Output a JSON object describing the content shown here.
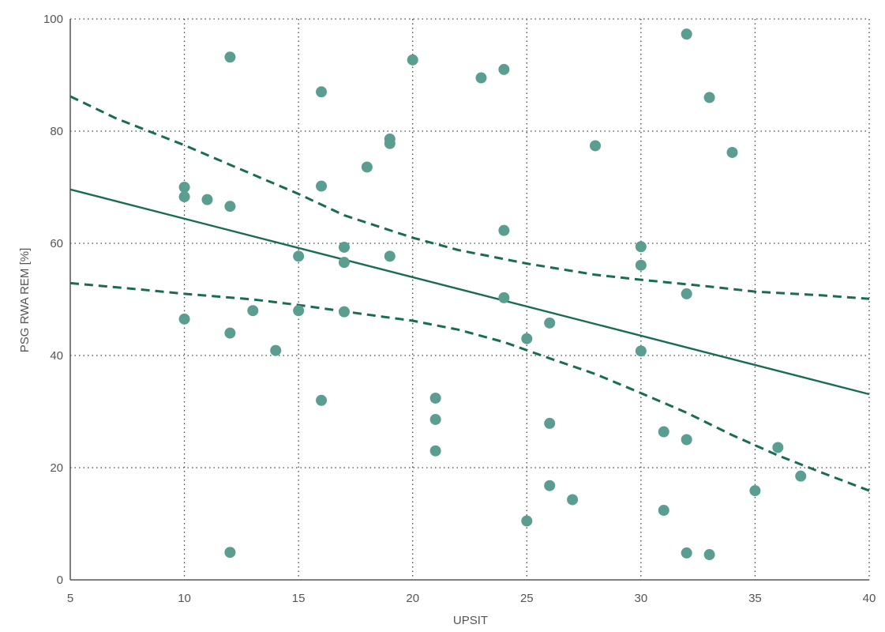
{
  "chart_data": {
    "type": "scatter",
    "title": "",
    "xlabel": "UPSIT",
    "ylabel": "PSG RWA REM [%]",
    "xlim": [
      5,
      40
    ],
    "ylim": [
      0,
      100
    ],
    "x_ticks": [
      5,
      10,
      15,
      20,
      25,
      30,
      35,
      40
    ],
    "y_ticks": [
      0,
      20,
      40,
      60,
      80,
      100
    ],
    "grid": "dotted",
    "legend": "none",
    "colors": {
      "points": "#5b9e91",
      "lines": "#1a6b55",
      "axes": "#555555",
      "grid": "#444444"
    },
    "points": [
      {
        "x": 10,
        "y": 70.0
      },
      {
        "x": 10,
        "y": 68.3
      },
      {
        "x": 10,
        "y": 46.5
      },
      {
        "x": 11,
        "y": 67.8
      },
      {
        "x": 12,
        "y": 93.2
      },
      {
        "x": 12,
        "y": 66.6
      },
      {
        "x": 12,
        "y": 44.0
      },
      {
        "x": 12,
        "y": 4.9
      },
      {
        "x": 13,
        "y": 48.0
      },
      {
        "x": 14,
        "y": 40.9
      },
      {
        "x": 15,
        "y": 57.7
      },
      {
        "x": 15,
        "y": 48.0
      },
      {
        "x": 16,
        "y": 87.0
      },
      {
        "x": 16,
        "y": 70.2
      },
      {
        "x": 16,
        "y": 32.0
      },
      {
        "x": 17,
        "y": 59.3
      },
      {
        "x": 17,
        "y": 56.6
      },
      {
        "x": 17,
        "y": 47.8
      },
      {
        "x": 18,
        "y": 73.6
      },
      {
        "x": 19,
        "y": 78.6
      },
      {
        "x": 19,
        "y": 77.8
      },
      {
        "x": 19,
        "y": 57.7
      },
      {
        "x": 20,
        "y": 92.7
      },
      {
        "x": 21,
        "y": 32.4
      },
      {
        "x": 21,
        "y": 28.6
      },
      {
        "x": 21,
        "y": 23.0
      },
      {
        "x": 23,
        "y": 89.5
      },
      {
        "x": 24,
        "y": 91.0
      },
      {
        "x": 24,
        "y": 62.3
      },
      {
        "x": 24,
        "y": 50.3
      },
      {
        "x": 25,
        "y": 43.0
      },
      {
        "x": 25,
        "y": 10.5
      },
      {
        "x": 26,
        "y": 45.8
      },
      {
        "x": 26,
        "y": 27.9
      },
      {
        "x": 26,
        "y": 16.8
      },
      {
        "x": 27,
        "y": 14.3
      },
      {
        "x": 28,
        "y": 77.4
      },
      {
        "x": 30,
        "y": 59.4
      },
      {
        "x": 30,
        "y": 56.1
      },
      {
        "x": 30,
        "y": 40.8
      },
      {
        "x": 31,
        "y": 26.4
      },
      {
        "x": 31,
        "y": 12.4
      },
      {
        "x": 32,
        "y": 97.3
      },
      {
        "x": 32,
        "y": 51.0
      },
      {
        "x": 32,
        "y": 25.0
      },
      {
        "x": 32,
        "y": 4.8
      },
      {
        "x": 33,
        "y": 86.0
      },
      {
        "x": 33,
        "y": 4.5
      },
      {
        "x": 34,
        "y": 76.2
      },
      {
        "x": 35,
        "y": 15.9
      },
      {
        "x": 36,
        "y": 23.6
      },
      {
        "x": 37,
        "y": 18.5
      }
    ],
    "regression_line": [
      {
        "x": 5,
        "y": 69.6
      },
      {
        "x": 40,
        "y": 33.1
      }
    ],
    "ci_upper": [
      {
        "x": 5,
        "y": 86.2
      },
      {
        "x": 7,
        "y": 82.3
      },
      {
        "x": 10,
        "y": 77.5
      },
      {
        "x": 12,
        "y": 74.0
      },
      {
        "x": 15,
        "y": 68.8
      },
      {
        "x": 17,
        "y": 65.0
      },
      {
        "x": 20,
        "y": 61.0
      },
      {
        "x": 22,
        "y": 58.8
      },
      {
        "x": 25,
        "y": 56.4
      },
      {
        "x": 28,
        "y": 54.4
      },
      {
        "x": 30,
        "y": 53.5
      },
      {
        "x": 33,
        "y": 52.3
      },
      {
        "x": 35,
        "y": 51.4
      },
      {
        "x": 38,
        "y": 50.7
      },
      {
        "x": 40,
        "y": 50.1
      }
    ],
    "ci_lower": [
      {
        "x": 5,
        "y": 52.9
      },
      {
        "x": 8,
        "y": 51.8
      },
      {
        "x": 10,
        "y": 51.0
      },
      {
        "x": 13,
        "y": 50.0
      },
      {
        "x": 15,
        "y": 49.0
      },
      {
        "x": 18,
        "y": 47.3
      },
      {
        "x": 20,
        "y": 46.2
      },
      {
        "x": 22,
        "y": 44.6
      },
      {
        "x": 24,
        "y": 42.4
      },
      {
        "x": 26,
        "y": 39.5
      },
      {
        "x": 28,
        "y": 36.7
      },
      {
        "x": 30,
        "y": 33.3
      },
      {
        "x": 32,
        "y": 29.8
      },
      {
        "x": 34,
        "y": 25.8
      },
      {
        "x": 36,
        "y": 22.2
      },
      {
        "x": 38,
        "y": 19.0
      },
      {
        "x": 40,
        "y": 15.9
      }
    ]
  }
}
